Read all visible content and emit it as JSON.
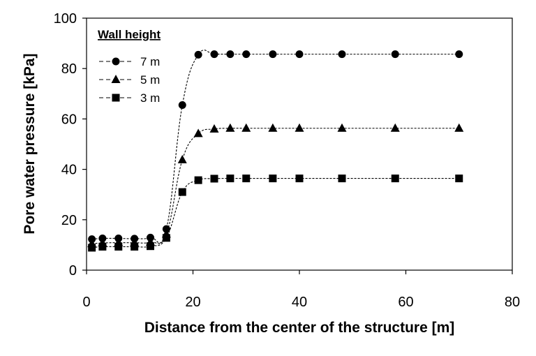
{
  "chart_data": {
    "type": "line",
    "title": "",
    "xlabel": "Distance from the center of the structure [m]",
    "ylabel": "Pore water pressure [kPa]",
    "xlim": [
      0,
      80
    ],
    "ylim": [
      0,
      100
    ],
    "x_ticks": [
      0,
      20,
      40,
      60,
      80
    ],
    "y_ticks": [
      0,
      20,
      40,
      60,
      80,
      100
    ],
    "grid": false,
    "legend": {
      "title": "Wall height",
      "position": "top-left"
    },
    "series": [
      {
        "name": "7 m",
        "marker": "circle",
        "x": [
          1,
          3,
          6,
          9,
          12,
          15,
          18,
          21,
          24,
          27,
          30,
          35,
          40,
          48,
          58,
          70
        ],
        "y": [
          12.3,
          12.6,
          12.6,
          12.5,
          12.9,
          16.3,
          65.5,
          85.5,
          85.7,
          85.7,
          85.7,
          85.7,
          85.7,
          85.7,
          85.7,
          85.7
        ]
      },
      {
        "name": "5 m",
        "marker": "triangle",
        "x": [
          1,
          3,
          6,
          9,
          12,
          15,
          18,
          21,
          24,
          27,
          30,
          35,
          40,
          48,
          58,
          70
        ],
        "y": [
          10.5,
          10.8,
          10.9,
          10.9,
          11.1,
          14.3,
          43.8,
          54.2,
          56.0,
          56.3,
          56.3,
          56.3,
          56.3,
          56.3,
          56.3,
          56.3
        ]
      },
      {
        "name": "3 m",
        "marker": "square",
        "x": [
          1,
          3,
          6,
          9,
          12,
          15,
          18,
          21,
          24,
          27,
          30,
          35,
          40,
          48,
          58,
          70
        ],
        "y": [
          8.9,
          9.3,
          9.3,
          9.3,
          9.5,
          12.8,
          31.0,
          35.7,
          36.3,
          36.4,
          36.4,
          36.4,
          36.4,
          36.4,
          36.4,
          36.4
        ]
      }
    ]
  }
}
